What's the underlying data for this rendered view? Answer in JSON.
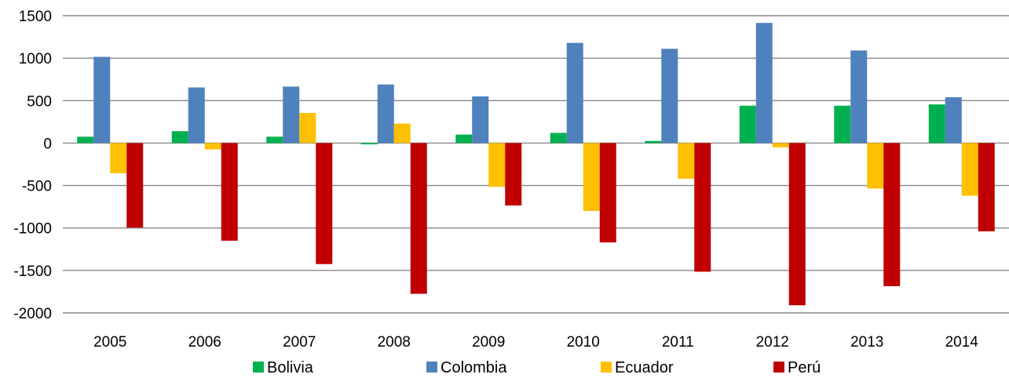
{
  "chart_data": {
    "type": "bar",
    "categories": [
      "2005",
      "2006",
      "2007",
      "2008",
      "2009",
      "2010",
      "2011",
      "2012",
      "2013",
      "2014"
    ],
    "series": [
      {
        "name": "Bolivia",
        "color": "#00B050",
        "values": [
          75,
          140,
          75,
          -15,
          100,
          120,
          25,
          440,
          440,
          455
        ]
      },
      {
        "name": "Colombia",
        "color": "#4F81BD",
        "values": [
          1015,
          655,
          665,
          690,
          550,
          1180,
          1110,
          1415,
          1090,
          540
        ]
      },
      {
        "name": "Ecuador",
        "color": "#FFC000",
        "values": [
          -355,
          -75,
          355,
          230,
          -515,
          -800,
          -420,
          -50,
          -535,
          -620
        ]
      },
      {
        "name": "Perú",
        "color": "#C00000",
        "values": [
          -995,
          -1150,
          -1425,
          -1775,
          -735,
          -1170,
          -1515,
          -1910,
          -1685,
          -1040
        ]
      }
    ],
    "y_ticks": [
      1500,
      1000,
      500,
      0,
      -500,
      -1000,
      -1500,
      -2000
    ],
    "ylim": [
      -2000,
      1500
    ],
    "grid": true,
    "legend_position": "bottom",
    "title": "",
    "xlabel": "",
    "ylabel": ""
  }
}
